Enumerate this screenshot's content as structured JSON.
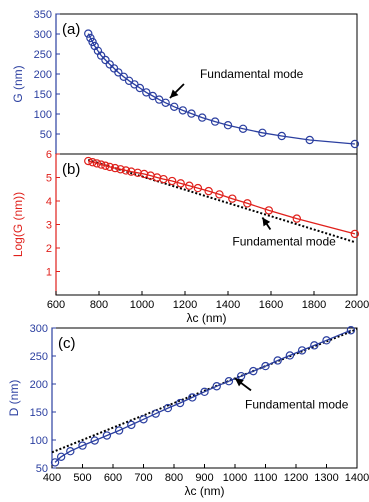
{
  "chart_data": [
    {
      "panel_label": "(a)",
      "type": "line",
      "ylabel": "G (nm)",
      "xlim": [
        600,
        2000
      ],
      "ylim": [
        0,
        350
      ],
      "yticks": [
        0,
        50,
        100,
        150,
        200,
        250,
        300,
        350
      ],
      "ytick_labels": [
        "",
        "50",
        "100",
        "150",
        "200",
        "250",
        "300",
        "350"
      ],
      "color": "#2b3fa0",
      "annotation": "Fundamental mode",
      "annotation_point": [
        1130,
        140
      ],
      "series": [
        {
          "x": [
            750,
            760,
            770,
            780,
            795,
            810,
            830,
            850,
            870,
            890,
            915,
            940,
            965,
            990,
            1020,
            1050,
            1080,
            1110,
            1150,
            1190,
            1230,
            1280,
            1340,
            1400,
            1470,
            1560,
            1650,
            1780,
            1990
          ],
          "y": [
            301,
            290,
            280,
            270,
            258,
            246,
            235,
            224,
            214,
            204,
            193,
            183,
            174,
            165,
            154,
            145,
            136,
            128,
            118,
            109,
            101,
            91,
            81,
            72,
            63,
            53,
            45,
            35,
            25
          ]
        }
      ]
    },
    {
      "panel_label": "(b)",
      "type": "line",
      "ylabel": "Log(G (nm))",
      "xlabel": "λc (nm)",
      "xlim": [
        600,
        2000
      ],
      "ylim": [
        0,
        6
      ],
      "xticks": [
        600,
        800,
        1000,
        1200,
        1400,
        1600,
        1800,
        2000
      ],
      "xtick_labels": [
        "600",
        "800",
        "1000",
        "1200",
        "1400",
        "1600",
        "1800",
        "2000"
      ],
      "yticks": [
        1,
        2,
        3,
        4,
        5,
        6
      ],
      "ytick_labels": [
        "1",
        "2",
        "3",
        "4",
        "5",
        "6"
      ],
      "color": "#e0201b",
      "annotation": "Fundamental mode",
      "annotation_point": [
        1560,
        3.3
      ],
      "series": [
        {
          "x": [
            750,
            770,
            790,
            810,
            830,
            850,
            875,
            900,
            925,
            950,
            980,
            1010,
            1040,
            1070,
            1100,
            1140,
            1180,
            1220,
            1260,
            1310,
            1360,
            1420,
            1490,
            1590,
            1720,
            1990
          ],
          "y": [
            5.7,
            5.65,
            5.6,
            5.55,
            5.5,
            5.45,
            5.4,
            5.35,
            5.3,
            5.25,
            5.2,
            5.15,
            5.08,
            5.0,
            4.93,
            4.85,
            4.75,
            4.65,
            4.55,
            4.42,
            4.28,
            4.1,
            3.9,
            3.6,
            3.25,
            2.6
          ]
        }
      ],
      "fit_line": {
        "x": [
          750,
          1990
        ],
        "y": [
          5.75,
          2.25
        ]
      }
    },
    {
      "panel_label": "(c)",
      "type": "line",
      "ylabel": "D (nm)",
      "xlabel": "λc (nm)",
      "xlim": [
        400,
        1400
      ],
      "ylim": [
        50,
        300
      ],
      "xticks": [
        400,
        500,
        600,
        700,
        800,
        900,
        1000,
        1100,
        1200,
        1300,
        1400
      ],
      "xtick_labels": [
        "400",
        "500",
        "600",
        "700",
        "800",
        "900",
        "1000",
        "1100",
        "1200",
        "1300",
        "1400"
      ],
      "yticks": [
        50,
        100,
        150,
        200,
        250,
        300
      ],
      "ytick_labels": [
        "50",
        "100",
        "150",
        "200",
        "250",
        "300"
      ],
      "color": "#2b3fa0",
      "annotation": "Fundamental mode",
      "annotation_point": [
        1000,
        210
      ],
      "series": [
        {
          "x": [
            410,
            430,
            460,
            500,
            540,
            580,
            620,
            660,
            700,
            740,
            780,
            820,
            860,
            900,
            940,
            980,
            1020,
            1060,
            1100,
            1140,
            1180,
            1220,
            1260,
            1300,
            1380
          ],
          "y": [
            60,
            70,
            80,
            90,
            99,
            108,
            117,
            127,
            137,
            147,
            157,
            166,
            176,
            186,
            196,
            205,
            214,
            223,
            232,
            242,
            251,
            260,
            269,
            278,
            296
          ]
        }
      ],
      "fit_line": {
        "x": [
          400,
          1400
        ],
        "y": [
          78,
          298
        ]
      }
    }
  ]
}
